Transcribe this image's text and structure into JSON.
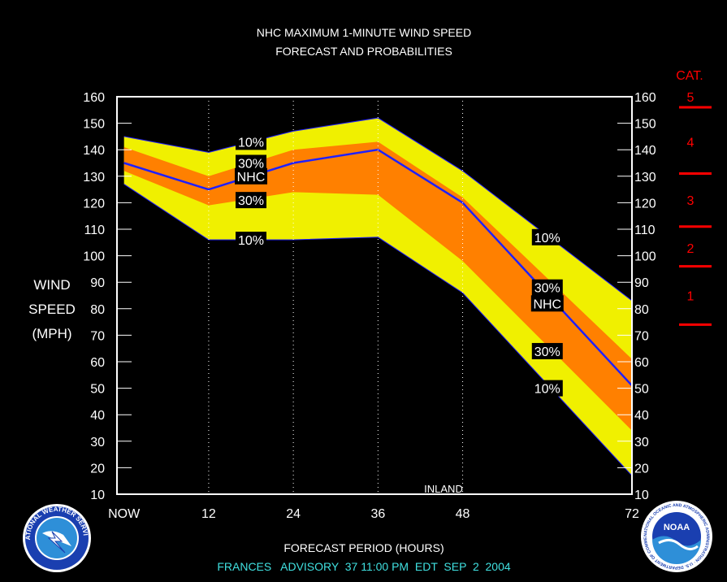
{
  "title_line1": "NHC MAXIMUM 1-MINUTE WIND SPEED",
  "title_line2": "FORECAST AND PROBABILITIES",
  "ylabel": [
    "WIND",
    "SPEED",
    "(MPH)"
  ],
  "xlabel": "FORECAST PERIOD (HOURS)",
  "advisory": "FRANCES   ADVISORY  37 11:00 PM  EDT  SEP  2  2004",
  "cat_header": "CAT.",
  "colors": {
    "background": "#000000",
    "band_10": "#f0f000",
    "band_30": "#ff8000",
    "nhc_line": "#2020ff",
    "frame": "#ffffff",
    "category": "#ff0000",
    "advisory": "#40e0e0"
  },
  "logos": {
    "left": "national-weather-service-logo",
    "right": "noaa-logo",
    "left_text": "NATIONAL WEATHER SERVICE",
    "right_text": "NOAA",
    "right_ring": "NATIONAL OCEANIC AND ATMOSPHERIC ADMINISTRATION · U.S. DEPARTMENT OF COMMERCE"
  },
  "chart_data": {
    "type": "area",
    "title": "NHC MAXIMUM 1-MINUTE WIND SPEED FORECAST AND PROBABILITIES",
    "xlabel": "FORECAST PERIOD (HOURS)",
    "ylabel": "WIND SPEED (MPH)",
    "x": [
      0,
      12,
      24,
      36,
      48,
      72
    ],
    "x_tick_labels": [
      "NOW",
      "12",
      "24",
      "36",
      "48",
      "72"
    ],
    "xlim": [
      -1,
      72
    ],
    "ylim": [
      10,
      160
    ],
    "y_ticks": [
      10,
      20,
      30,
      40,
      50,
      60,
      70,
      80,
      90,
      100,
      110,
      120,
      130,
      140,
      150,
      160
    ],
    "vertical_grid": "dotted at 12, 24, 36, 48",
    "series": [
      {
        "name": "10%",
        "role": "upper",
        "values": [
          145,
          139,
          147,
          152,
          132,
          83
        ]
      },
      {
        "name": "30%",
        "role": "upper",
        "values": [
          141,
          130,
          140,
          143,
          122,
          61
        ]
      },
      {
        "name": "NHC",
        "role": "forecast",
        "values": [
          135,
          125,
          135,
          140,
          120,
          51
        ]
      },
      {
        "name": "30%",
        "role": "lower",
        "values": [
          132,
          119,
          124,
          123,
          98,
          34
        ]
      },
      {
        "name": "10%",
        "role": "lower",
        "values": [
          127,
          106,
          106,
          107,
          86,
          17
        ]
      }
    ],
    "band_labels": [
      {
        "text": "10%",
        "x": 18,
        "y": 143
      },
      {
        "text": "30%",
        "x": 18,
        "y": 135
      },
      {
        "text": "NHC",
        "x": 18,
        "y": 130
      },
      {
        "text": "30%",
        "x": 18,
        "y": 121
      },
      {
        "text": "10%",
        "x": 18,
        "y": 106
      },
      {
        "text": "10%",
        "x": 60,
        "y": 107
      },
      {
        "text": "30%",
        "x": 60,
        "y": 88
      },
      {
        "text": "NHC",
        "x": 60,
        "y": 82
      },
      {
        "text": "30%",
        "x": 60,
        "y": 64
      },
      {
        "text": "10%",
        "x": 60,
        "y": 50
      }
    ],
    "annotations": [
      {
        "text": "INLAND",
        "x": 48,
        "y": 12
      }
    ],
    "categories_scale": [
      {
        "label": "5",
        "boundary_mph": 156
      },
      {
        "label": "4",
        "boundary_mph": 131
      },
      {
        "label": "3",
        "boundary_mph": 111
      },
      {
        "label": "2",
        "boundary_mph": 96
      },
      {
        "label": "1",
        "boundary_mph": 74
      }
    ],
    "category_label_positions_mph": [
      160,
      143,
      121,
      103,
      85
    ]
  }
}
